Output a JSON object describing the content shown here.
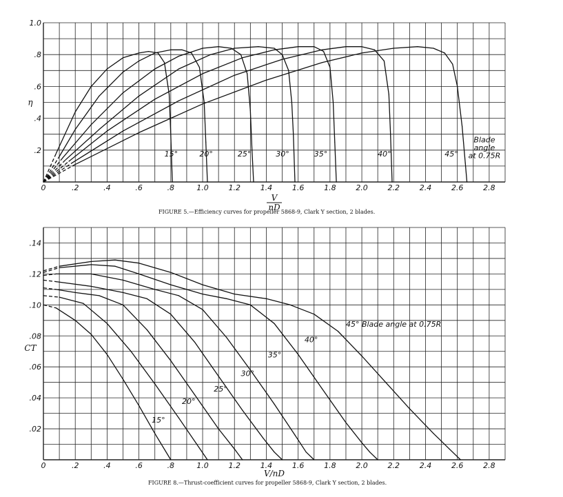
{
  "chart_data": [
    {
      "type": "line",
      "title": "",
      "caption": "FIGURE 5.—Efficiency curves for propeller 5868-9, Clark Y section, 2 blades.",
      "ylabel": "η",
      "xlabel_num": "V",
      "xlabel_den": "nD",
      "xlim": [
        0,
        2.9
      ],
      "ylim": [
        0,
        1.0
      ],
      "xticks": [
        {
          "v": 0,
          "t": "0"
        },
        {
          "v": 0.2,
          "t": ".2"
        },
        {
          "v": 0.4,
          "t": ".4"
        },
        {
          "v": 0.6,
          "t": ".6"
        },
        {
          "v": 0.8,
          "t": ".8"
        },
        {
          "v": 1.0,
          "t": "1.0"
        },
        {
          "v": 1.2,
          "t": "1.2"
        },
        {
          "v": 1.4,
          "t": "1.4"
        },
        {
          "v": 1.6,
          "t": "1.6"
        },
        {
          "v": 1.8,
          "t": "1.8"
        },
        {
          "v": 2.0,
          "t": "2.0"
        },
        {
          "v": 2.2,
          "t": "2.2"
        },
        {
          "v": 2.4,
          "t": "2.4"
        },
        {
          "v": 2.6,
          "t": "2.6"
        },
        {
          "v": 2.8,
          "t": "2.8"
        }
      ],
      "yticks": [
        {
          "v": 0.2,
          "t": ".2"
        },
        {
          "v": 0.4,
          "t": ".4"
        },
        {
          "v": 0.6,
          "t": ".6"
        },
        {
          "v": 0.8,
          "t": ".8"
        },
        {
          "v": 1.0,
          "t": "1.0"
        }
      ],
      "grid": true,
      "annotation": [
        "Blade",
        "angle",
        "at 0.75R"
      ],
      "series": [
        {
          "name": "15°",
          "label_at": [
            0.76,
            0.16
          ],
          "dashed_until": 0.08,
          "points": [
            [
              0,
              0
            ],
            [
              0.08,
              0.18
            ],
            [
              0.2,
              0.44
            ],
            [
              0.3,
              0.6
            ],
            [
              0.4,
              0.71
            ],
            [
              0.5,
              0.78
            ],
            [
              0.6,
              0.81
            ],
            [
              0.66,
              0.82
            ],
            [
              0.72,
              0.81
            ],
            [
              0.76,
              0.75
            ],
            [
              0.79,
              0.55
            ],
            [
              0.8,
              0.3
            ],
            [
              0.81,
              0
            ]
          ]
        },
        {
          "name": "20°",
          "label_at": [
            0.98,
            0.16
          ],
          "dashed_until": 0.1,
          "points": [
            [
              0,
              0
            ],
            [
              0.1,
              0.16
            ],
            [
              0.2,
              0.33
            ],
            [
              0.35,
              0.54
            ],
            [
              0.5,
              0.69
            ],
            [
              0.6,
              0.76
            ],
            [
              0.7,
              0.81
            ],
            [
              0.8,
              0.83
            ],
            [
              0.87,
              0.83
            ],
            [
              0.93,
              0.81
            ],
            [
              0.98,
              0.72
            ],
            [
              1.01,
              0.5
            ],
            [
              1.02,
              0.25
            ],
            [
              1.03,
              0
            ]
          ]
        },
        {
          "name": "25°",
          "label_at": [
            1.22,
            0.16
          ],
          "dashed_until": 0.12,
          "points": [
            [
              0,
              0
            ],
            [
              0.12,
              0.15
            ],
            [
              0.3,
              0.36
            ],
            [
              0.5,
              0.56
            ],
            [
              0.7,
              0.71
            ],
            [
              0.85,
              0.79
            ],
            [
              1.0,
              0.84
            ],
            [
              1.1,
              0.85
            ],
            [
              1.18,
              0.84
            ],
            [
              1.24,
              0.8
            ],
            [
              1.28,
              0.68
            ],
            [
              1.3,
              0.45
            ],
            [
              1.31,
              0.2
            ],
            [
              1.32,
              0
            ]
          ]
        },
        {
          "name": "30°",
          "label_at": [
            1.46,
            0.16
          ],
          "dashed_until": 0.14,
          "points": [
            [
              0,
              0
            ],
            [
              0.14,
              0.14
            ],
            [
              0.35,
              0.33
            ],
            [
              0.6,
              0.54
            ],
            [
              0.85,
              0.71
            ],
            [
              1.05,
              0.8
            ],
            [
              1.2,
              0.84
            ],
            [
              1.35,
              0.85
            ],
            [
              1.45,
              0.84
            ],
            [
              1.5,
              0.8
            ],
            [
              1.54,
              0.7
            ],
            [
              1.56,
              0.5
            ],
            [
              1.57,
              0.3
            ],
            [
              1.58,
              0
            ]
          ]
        },
        {
          "name": "35°",
          "label_at": [
            1.7,
            0.16
          ],
          "dashed_until": 0.16,
          "points": [
            [
              0,
              0
            ],
            [
              0.16,
              0.13
            ],
            [
              0.4,
              0.32
            ],
            [
              0.7,
              0.52
            ],
            [
              1.0,
              0.68
            ],
            [
              1.25,
              0.78
            ],
            [
              1.45,
              0.83
            ],
            [
              1.6,
              0.85
            ],
            [
              1.7,
              0.85
            ],
            [
              1.76,
              0.82
            ],
            [
              1.8,
              0.72
            ],
            [
              1.82,
              0.5
            ],
            [
              1.83,
              0.25
            ],
            [
              1.84,
              0
            ]
          ]
        },
        {
          "name": "40°",
          "label_at": [
            2.1,
            0.16
          ],
          "dashed_until": 0.18,
          "points": [
            [
              0,
              0
            ],
            [
              0.18,
              0.12
            ],
            [
              0.5,
              0.32
            ],
            [
              0.85,
              0.51
            ],
            [
              1.2,
              0.67
            ],
            [
              1.5,
              0.77
            ],
            [
              1.75,
              0.83
            ],
            [
              1.9,
              0.85
            ],
            [
              2.0,
              0.85
            ],
            [
              2.08,
              0.83
            ],
            [
              2.14,
              0.76
            ],
            [
              2.17,
              0.55
            ],
            [
              2.18,
              0.3
            ],
            [
              2.19,
              0
            ]
          ]
        },
        {
          "name": "45°",
          "label_at": [
            2.52,
            0.16
          ],
          "dashed_until": 0.2,
          "points": [
            [
              0,
              0
            ],
            [
              0.2,
              0.11
            ],
            [
              0.6,
              0.31
            ],
            [
              1.0,
              0.49
            ],
            [
              1.4,
              0.64
            ],
            [
              1.75,
              0.75
            ],
            [
              2.0,
              0.81
            ],
            [
              2.2,
              0.84
            ],
            [
              2.35,
              0.85
            ],
            [
              2.45,
              0.84
            ],
            [
              2.52,
              0.81
            ],
            [
              2.57,
              0.74
            ],
            [
              2.6,
              0.6
            ],
            [
              2.63,
              0.35
            ],
            [
              2.65,
              0.12
            ],
            [
              2.66,
              0
            ]
          ]
        }
      ]
    },
    {
      "type": "line",
      "title": "",
      "caption": "FIGURE 8.—Thrust-coefficient curves for propeller 5868-9, Clark Y section, 2 blades.",
      "ylabel": "CT",
      "xlabel": "V/nD",
      "xlim": [
        0,
        2.9
      ],
      "ylim": [
        0,
        0.15
      ],
      "xticks": [
        {
          "v": 0,
          "t": "0"
        },
        {
          "v": 0.2,
          "t": ".2"
        },
        {
          "v": 0.4,
          "t": ".4"
        },
        {
          "v": 0.6,
          "t": ".6"
        },
        {
          "v": 0.8,
          "t": ".8"
        },
        {
          "v": 1.0,
          "t": "1.0"
        },
        {
          "v": 1.2,
          "t": "1.2"
        },
        {
          "v": 1.4,
          "t": "1.4"
        },
        {
          "v": 1.6,
          "t": "1.6"
        },
        {
          "v": 1.8,
          "t": "1.8"
        },
        {
          "v": 2.0,
          "t": "2.0"
        },
        {
          "v": 2.2,
          "t": "2.2"
        },
        {
          "v": 2.4,
          "t": "2.4"
        },
        {
          "v": 2.6,
          "t": "2.6"
        },
        {
          "v": 2.8,
          "t": "2.8"
        }
      ],
      "yticks": [
        {
          "v": 0.02,
          "t": ".02"
        },
        {
          "v": 0.04,
          "t": ".04"
        },
        {
          "v": 0.06,
          "t": ".06"
        },
        {
          "v": 0.08,
          "t": ".08"
        },
        {
          "v": 0.1,
          "t": ".10"
        },
        {
          "v": 0.12,
          "t": ".12"
        },
        {
          "v": 0.14,
          "t": ".14"
        }
      ],
      "grid": true,
      "annotation": "Blade angle at 0.75R",
      "series": [
        {
          "name": "15°",
          "label_at": [
            0.68,
            0.024
          ],
          "dashed_until": 0.08,
          "points": [
            [
              0,
              0.1
            ],
            [
              0.08,
              0.098
            ],
            [
              0.2,
              0.09
            ],
            [
              0.3,
              0.081
            ],
            [
              0.4,
              0.068
            ],
            [
              0.5,
              0.052
            ],
            [
              0.6,
              0.035
            ],
            [
              0.7,
              0.017
            ],
            [
              0.8,
              0
            ]
          ]
        },
        {
          "name": "20°",
          "label_at": [
            0.87,
            0.036
          ],
          "dashed_until": 0.1,
          "points": [
            [
              0,
              0.106
            ],
            [
              0.1,
              0.105
            ],
            [
              0.25,
              0.101
            ],
            [
              0.4,
              0.088
            ],
            [
              0.55,
              0.07
            ],
            [
              0.7,
              0.049
            ],
            [
              0.85,
              0.027
            ],
            [
              0.95,
              0.012
            ],
            [
              1.03,
              0
            ]
          ]
        },
        {
          "name": "25°",
          "label_at": [
            1.07,
            0.044
          ],
          "dashed_until": 0.08,
          "points": [
            [
              0,
              0.111
            ],
            [
              0.08,
              0.11
            ],
            [
              0.2,
              0.108
            ],
            [
              0.35,
              0.106
            ],
            [
              0.5,
              0.1
            ],
            [
              0.65,
              0.084
            ],
            [
              0.8,
              0.064
            ],
            [
              0.95,
              0.042
            ],
            [
              1.1,
              0.02
            ],
            [
              1.2,
              0.007
            ],
            [
              1.25,
              0
            ]
          ]
        },
        {
          "name": "30°",
          "label_at": [
            1.24,
            0.054
          ],
          "dashed_until": 0.08,
          "points": [
            [
              0,
              0.116
            ],
            [
              0.08,
              0.115
            ],
            [
              0.3,
              0.112
            ],
            [
              0.5,
              0.108
            ],
            [
              0.65,
              0.104
            ],
            [
              0.8,
              0.094
            ],
            [
              0.95,
              0.076
            ],
            [
              1.1,
              0.054
            ],
            [
              1.25,
              0.032
            ],
            [
              1.38,
              0.014
            ],
            [
              1.45,
              0.005
            ],
            [
              1.5,
              0
            ]
          ]
        },
        {
          "name": "35°",
          "label_at": [
            1.41,
            0.066
          ],
          "dashed_until": 0.08,
          "points": [
            [
              0,
              0.119
            ],
            [
              0.08,
              0.12
            ],
            [
              0.3,
              0.12
            ],
            [
              0.5,
              0.116
            ],
            [
              0.7,
              0.11
            ],
            [
              0.85,
              0.106
            ],
            [
              1.0,
              0.097
            ],
            [
              1.15,
              0.079
            ],
            [
              1.3,
              0.058
            ],
            [
              1.45,
              0.036
            ],
            [
              1.58,
              0.016
            ],
            [
              1.65,
              0.005
            ],
            [
              1.7,
              0
            ]
          ]
        },
        {
          "name": "40°",
          "label_at": [
            1.64,
            0.076
          ],
          "dashed_until": 0.1,
          "points": [
            [
              0,
              0.121
            ],
            [
              0.1,
              0.124
            ],
            [
              0.3,
              0.126
            ],
            [
              0.45,
              0.125
            ],
            [
              0.6,
              0.12
            ],
            [
              0.8,
              0.113
            ],
            [
              1.0,
              0.107
            ],
            [
              1.15,
              0.104
            ],
            [
              1.3,
              0.1
            ],
            [
              1.45,
              0.088
            ],
            [
              1.6,
              0.068
            ],
            [
              1.75,
              0.046
            ],
            [
              1.9,
              0.024
            ],
            [
              2.0,
              0.011
            ],
            [
              2.05,
              0.005
            ],
            [
              2.1,
              0
            ]
          ]
        },
        {
          "name": "45°",
          "label_at": [
            1.9,
            0.086
          ],
          "dashed_until": 0.1,
          "points": [
            [
              0,
              0.122
            ],
            [
              0.1,
              0.125
            ],
            [
              0.3,
              0.128
            ],
            [
              0.45,
              0.129
            ],
            [
              0.6,
              0.127
            ],
            [
              0.8,
              0.121
            ],
            [
              1.0,
              0.113
            ],
            [
              1.2,
              0.107
            ],
            [
              1.4,
              0.104
            ],
            [
              1.55,
              0.1
            ],
            [
              1.7,
              0.094
            ],
            [
              1.85,
              0.083
            ],
            [
              2.0,
              0.067
            ],
            [
              2.15,
              0.05
            ],
            [
              2.3,
              0.033
            ],
            [
              2.45,
              0.017
            ],
            [
              2.55,
              0.007
            ],
            [
              2.62,
              0
            ]
          ]
        }
      ]
    }
  ]
}
